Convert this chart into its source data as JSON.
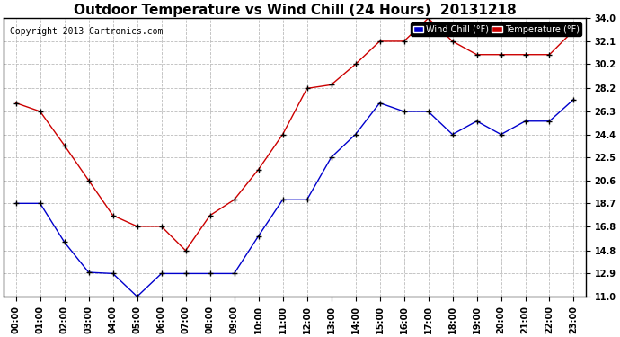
{
  "title": "Outdoor Temperature vs Wind Chill (24 Hours)  20131218",
  "copyright": "Copyright 2013 Cartronics.com",
  "legend_wind_chill": "Wind Chill (°F)",
  "legend_temp": "Temperature (°F)",
  "x_labels": [
    "00:00",
    "01:00",
    "02:00",
    "03:00",
    "04:00",
    "05:00",
    "06:00",
    "07:00",
    "08:00",
    "09:00",
    "10:00",
    "11:00",
    "12:00",
    "13:00",
    "14:00",
    "15:00",
    "16:00",
    "17:00",
    "18:00",
    "19:00",
    "20:00",
    "21:00",
    "22:00",
    "23:00"
  ],
  "temperature": [
    27.0,
    26.3,
    23.5,
    20.6,
    17.7,
    16.8,
    16.8,
    14.8,
    17.7,
    19.0,
    21.5,
    24.4,
    28.2,
    28.5,
    30.2,
    32.1,
    32.1,
    34.0,
    32.1,
    31.0,
    31.0,
    31.0,
    31.0,
    33.0
  ],
  "wind_chill": [
    18.7,
    18.7,
    15.5,
    13.0,
    12.9,
    11.0,
    12.9,
    12.9,
    12.9,
    12.9,
    16.0,
    19.0,
    19.0,
    22.5,
    24.4,
    27.0,
    26.3,
    26.3,
    24.4,
    25.5,
    24.4,
    25.5,
    25.5,
    27.3
  ],
  "ylim": [
    11.0,
    34.0
  ],
  "yticks": [
    11.0,
    12.9,
    14.8,
    16.8,
    18.7,
    20.6,
    22.5,
    24.4,
    26.3,
    28.2,
    30.2,
    32.1,
    34.0
  ],
  "bg_color": "#ffffff",
  "grid_color": "#bbbbbb",
  "temp_color": "#cc0000",
  "wind_color": "#0000cc",
  "title_fontsize": 11,
  "tick_fontsize": 7,
  "copyright_fontsize": 7
}
